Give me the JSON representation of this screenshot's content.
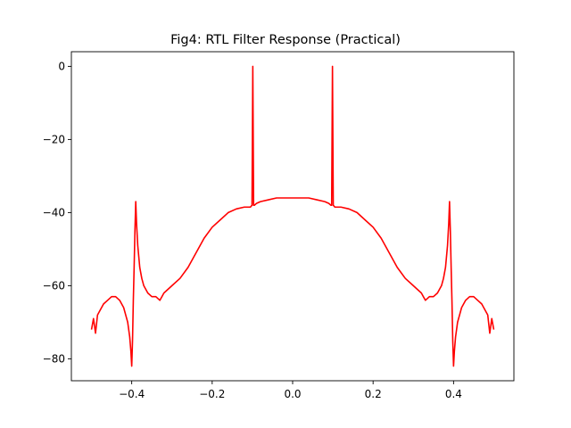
{
  "chart_data": {
    "type": "line",
    "title": "Fig4: RTL Filter Response (Practical)",
    "xlabel": "",
    "ylabel": "",
    "xlim": [
      -0.55,
      0.55
    ],
    "ylim": [
      -86,
      4
    ],
    "grid": false,
    "x_ticks": [
      -0.4,
      -0.2,
      0.0,
      0.2,
      0.4
    ],
    "x_tick_labels": [
      "−0.4",
      "−0.2",
      "0.0",
      "0.2",
      "0.4"
    ],
    "y_ticks": [
      0,
      -20,
      -40,
      -60,
      -80
    ],
    "y_tick_labels": [
      "0",
      "−20",
      "−40",
      "−60",
      "−80"
    ],
    "series": [
      {
        "color": "#ff0000",
        "x": [
          -0.5,
          -0.495,
          -0.49,
          -0.485,
          -0.48,
          -0.47,
          -0.46,
          -0.45,
          -0.44,
          -0.43,
          -0.42,
          -0.415,
          -0.41,
          -0.405,
          -0.402,
          -0.4,
          -0.398,
          -0.396,
          -0.394,
          -0.392,
          -0.39,
          -0.388,
          -0.385,
          -0.38,
          -0.375,
          -0.37,
          -0.36,
          -0.35,
          -0.34,
          -0.33,
          -0.325,
          -0.32,
          -0.3,
          -0.28,
          -0.26,
          -0.24,
          -0.22,
          -0.2,
          -0.18,
          -0.16,
          -0.14,
          -0.12,
          -0.105,
          -0.101,
          -0.099,
          -0.097,
          -0.095,
          -0.09,
          -0.08,
          -0.06,
          -0.04,
          -0.02,
          0.0,
          0.02,
          0.04,
          0.06,
          0.08,
          0.09,
          0.095,
          0.097,
          0.099,
          0.101,
          0.105,
          0.12,
          0.14,
          0.16,
          0.18,
          0.2,
          0.22,
          0.24,
          0.26,
          0.28,
          0.3,
          0.32,
          0.325,
          0.33,
          0.34,
          0.35,
          0.36,
          0.37,
          0.375,
          0.38,
          0.385,
          0.388,
          0.39,
          0.392,
          0.394,
          0.396,
          0.398,
          0.4,
          0.402,
          0.405,
          0.41,
          0.415,
          0.42,
          0.43,
          0.44,
          0.45,
          0.46,
          0.47,
          0.48,
          0.485,
          0.49,
          0.495,
          0.5
        ],
        "values": [
          -72,
          -69,
          -73,
          -68,
          -67,
          -65,
          -64,
          -63,
          -63,
          -64,
          -66,
          -68,
          -70,
          -74,
          -78,
          -82,
          -75,
          -64,
          -55,
          -45,
          -37,
          -43,
          -49,
          -55,
          -58,
          -60,
          -62,
          -63,
          -63,
          -64,
          -63,
          -62,
          -60,
          -58,
          -55,
          -51,
          -47,
          -44,
          -42,
          -40,
          -39,
          -38.5,
          -38.5,
          -38,
          0,
          -38,
          -38,
          -37.5,
          -37,
          -36.5,
          -36,
          -36,
          -36,
          -36,
          -36,
          -36.5,
          -37,
          -37.5,
          -38,
          -38,
          0,
          -38,
          -38.5,
          -38.5,
          -39,
          -40,
          -42,
          -44,
          -47,
          -51,
          -55,
          -58,
          -60,
          -62,
          -63,
          -64,
          -63,
          -63,
          -62,
          -60,
          -58,
          -55,
          -49,
          -43,
          -37,
          -45,
          -55,
          -64,
          -75,
          -82,
          -78,
          -74,
          -70,
          -68,
          -66,
          -64,
          -63,
          -63,
          -64,
          -65,
          -67,
          -68,
          -73,
          -69,
          -72
        ]
      }
    ]
  }
}
